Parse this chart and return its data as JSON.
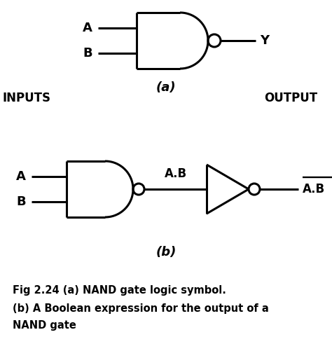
{
  "bg_color": "#ffffff",
  "line_color": "#000000",
  "lw": 2.2,
  "fig_width": 4.74,
  "fig_height": 5.01,
  "caption_line1": "Fig 2.24 (a) NAND gate logic symbol.",
  "caption_line2": "(b) A Boolean expression for the output of a",
  "caption_line3": "NAND gate",
  "xlim": [
    0,
    474
  ],
  "ylim": [
    0,
    501
  ]
}
